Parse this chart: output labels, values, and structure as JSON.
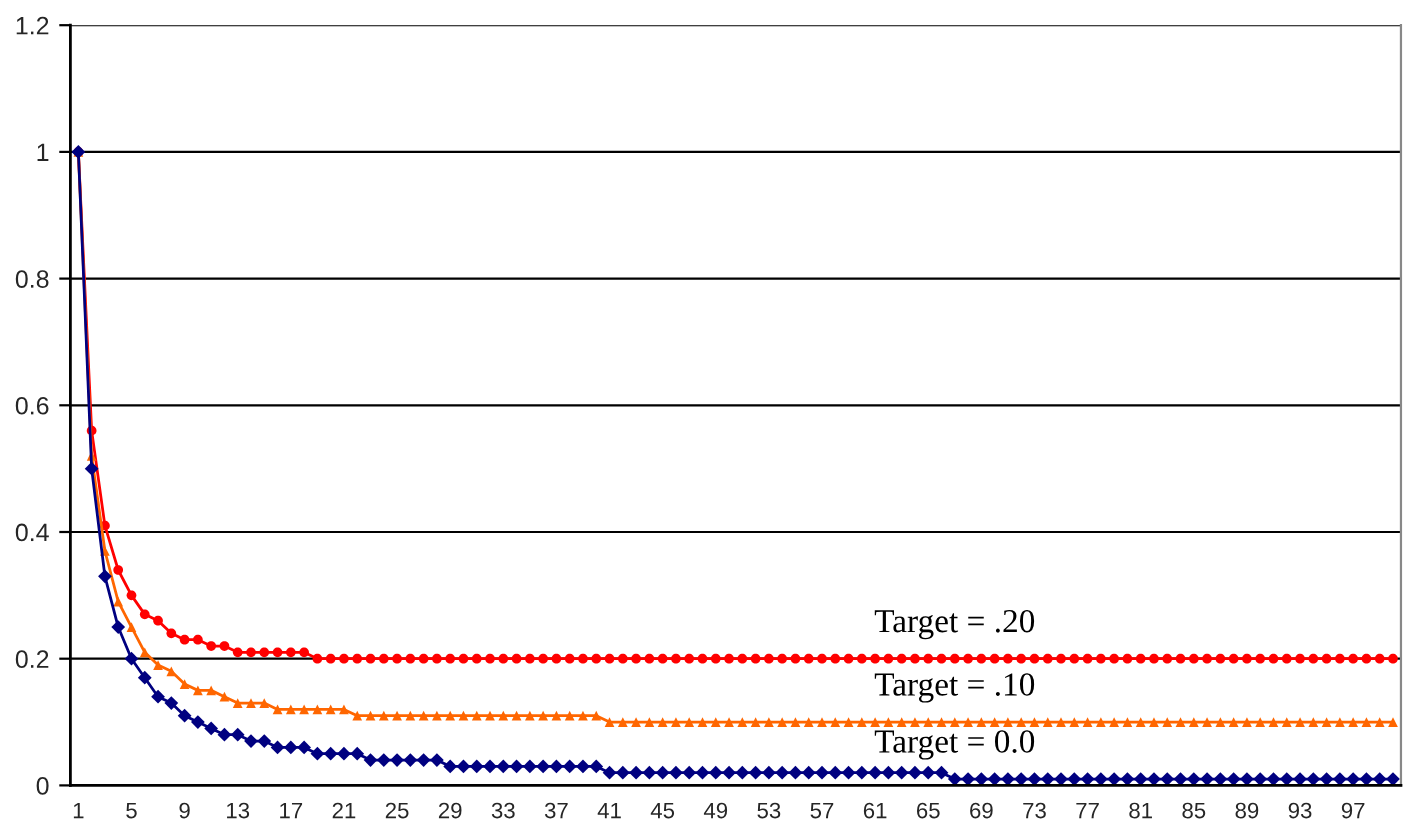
{
  "chart_data": {
    "type": "line",
    "categories": [
      "1",
      null,
      null,
      null,
      "5",
      null,
      null,
      null,
      "9",
      null,
      null,
      null,
      "13",
      null,
      null,
      null,
      "17",
      null,
      null,
      null,
      "21",
      null,
      null,
      null,
      "25",
      null,
      null,
      null,
      "29",
      null,
      null,
      null,
      "33",
      null,
      null,
      null,
      "37",
      null,
      null,
      null,
      "41",
      null,
      null,
      null,
      "45",
      null,
      null,
      null,
      "49",
      null,
      null,
      null,
      "53",
      null,
      null,
      null,
      "57",
      null,
      null,
      null,
      "61",
      null,
      null,
      null,
      "65",
      null,
      null,
      null,
      "69",
      null,
      null,
      null,
      "73",
      null,
      null,
      null,
      "77",
      null,
      null,
      null,
      "81",
      null,
      null,
      null,
      "85",
      null,
      null,
      null,
      "89",
      null,
      null,
      null,
      "93",
      null,
      null,
      null,
      "97",
      null,
      null,
      null
    ],
    "series": [
      {
        "name": "Target = .20",
        "color": "#ff0000",
        "marker": "circle",
        "values": [
          1,
          0.56,
          0.41,
          0.34,
          0.3,
          0.27,
          0.26,
          0.24,
          0.23,
          0.23,
          0.22,
          0.22,
          0.21,
          0.21,
          0.21,
          0.21,
          0.21,
          0.21,
          0.2,
          0.2,
          0.2,
          0.2,
          0.2,
          0.2,
          0.2,
          0.2,
          0.2,
          0.2,
          0.2,
          0.2,
          0.2,
          0.2,
          0.2,
          0.2,
          0.2,
          0.2,
          0.2,
          0.2,
          0.2,
          0.2,
          0.2,
          0.2,
          0.2,
          0.2,
          0.2,
          0.2,
          0.2,
          0.2,
          0.2,
          0.2,
          0.2,
          0.2,
          0.2,
          0.2,
          0.2,
          0.2,
          0.2,
          0.2,
          0.2,
          0.2,
          0.2,
          0.2,
          0.2,
          0.2,
          0.2,
          0.2,
          0.2,
          0.2,
          0.2,
          0.2,
          0.2,
          0.2,
          0.2,
          0.2,
          0.2,
          0.2,
          0.2,
          0.2,
          0.2,
          0.2,
          0.2,
          0.2,
          0.2,
          0.2,
          0.2,
          0.2,
          0.2,
          0.2,
          0.2,
          0.2,
          0.2,
          0.2,
          0.2,
          0.2,
          0.2,
          0.2,
          0.2,
          0.2,
          0.2,
          0.2
        ]
      },
      {
        "name": "Target = .10",
        "color": "#ff6600",
        "marker": "triangle",
        "values": [
          1,
          0.52,
          0.37,
          0.29,
          0.25,
          0.21,
          0.19,
          0.18,
          0.16,
          0.15,
          0.15,
          0.14,
          0.13,
          0.13,
          0.13,
          0.12,
          0.12,
          0.12,
          0.12,
          0.12,
          0.12,
          0.11,
          0.11,
          0.11,
          0.11,
          0.11,
          0.11,
          0.11,
          0.11,
          0.11,
          0.11,
          0.11,
          0.11,
          0.11,
          0.11,
          0.11,
          0.11,
          0.11,
          0.11,
          0.11,
          0.1,
          0.1,
          0.1,
          0.1,
          0.1,
          0.1,
          0.1,
          0.1,
          0.1,
          0.1,
          0.1,
          0.1,
          0.1,
          0.1,
          0.1,
          0.1,
          0.1,
          0.1,
          0.1,
          0.1,
          0.1,
          0.1,
          0.1,
          0.1,
          0.1,
          0.1,
          0.1,
          0.1,
          0.1,
          0.1,
          0.1,
          0.1,
          0.1,
          0.1,
          0.1,
          0.1,
          0.1,
          0.1,
          0.1,
          0.1,
          0.1,
          0.1,
          0.1,
          0.1,
          0.1,
          0.1,
          0.1,
          0.1,
          0.1,
          0.1,
          0.1,
          0.1,
          0.1,
          0.1,
          0.1,
          0.1,
          0.1,
          0.1,
          0.1,
          0.1
        ]
      },
      {
        "name": "Target = 0.0",
        "color": "#000080",
        "marker": "diamond",
        "values": [
          1,
          0.5,
          0.33,
          0.25,
          0.2,
          0.17,
          0.14,
          0.13,
          0.11,
          0.1,
          0.09,
          0.08,
          0.08,
          0.07,
          0.07,
          0.06,
          0.06,
          0.06,
          0.05,
          0.05,
          0.05,
          0.05,
          0.04,
          0.04,
          0.04,
          0.04,
          0.04,
          0.04,
          0.03,
          0.03,
          0.03,
          0.03,
          0.03,
          0.03,
          0.03,
          0.03,
          0.03,
          0.03,
          0.03,
          0.03,
          0.02,
          0.02,
          0.02,
          0.02,
          0.02,
          0.02,
          0.02,
          0.02,
          0.02,
          0.02,
          0.02,
          0.02,
          0.02,
          0.02,
          0.02,
          0.02,
          0.02,
          0.02,
          0.02,
          0.02,
          0.02,
          0.02,
          0.02,
          0.02,
          0.02,
          0.02,
          0.01,
          0.01,
          0.01,
          0.01,
          0.01,
          0.01,
          0.01,
          0.01,
          0.01,
          0.01,
          0.01,
          0.01,
          0.01,
          0.01,
          0.01,
          0.01,
          0.01,
          0.01,
          0.01,
          0.01,
          0.01,
          0.01,
          0.01,
          0.01,
          0.01,
          0.01,
          0.01,
          0.01,
          0.01,
          0.01,
          0.01,
          0.01,
          0.01,
          0.01
        ]
      }
    ],
    "ylim": [
      0,
      1.2
    ],
    "yticks": [
      0,
      0.2,
      0.4,
      0.6,
      0.8,
      1,
      1.2
    ],
    "grid": "y",
    "legend": false,
    "line_style": "solid"
  }
}
